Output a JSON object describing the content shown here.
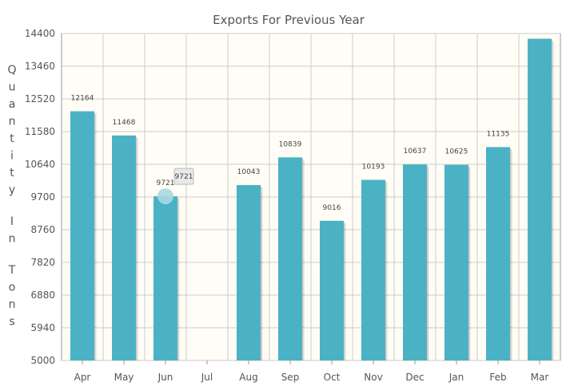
{
  "chart_data": {
    "type": "bar",
    "title": "Exports For Previous Year",
    "xlabel": "",
    "ylabel": "Quantity In Tons",
    "categories": [
      "Apr",
      "May",
      "Jun",
      "Jul",
      "Aug",
      "Sep",
      "Oct",
      "Nov",
      "Dec",
      "Jan",
      "Feb",
      "Mar"
    ],
    "values": [
      12164,
      11468,
      9721,
      null,
      10043,
      10839,
      9016,
      10193,
      10637,
      10625,
      11135,
      14250
    ],
    "data_labels": [
      "12164",
      "11468",
      "9721",
      "",
      "10043",
      "10839",
      "9016",
      "10193",
      "10637",
      "10625",
      "11135",
      ""
    ],
    "ylim": [
      5000,
      14400
    ],
    "yticks": [
      "5000",
      "5940",
      "6880",
      "7820",
      "8760",
      "9700",
      "10640",
      "11580",
      "12520",
      "13460",
      "14400"
    ],
    "grid": true,
    "tooltip": {
      "category": "Jun",
      "text": "9721"
    },
    "colors": {
      "bar": "#4bb2c5",
      "bar_shadow": "#c4c4c4",
      "plot_bg": "#fffdf6",
      "grid": "#cccccc",
      "axis": "#999999"
    }
  }
}
